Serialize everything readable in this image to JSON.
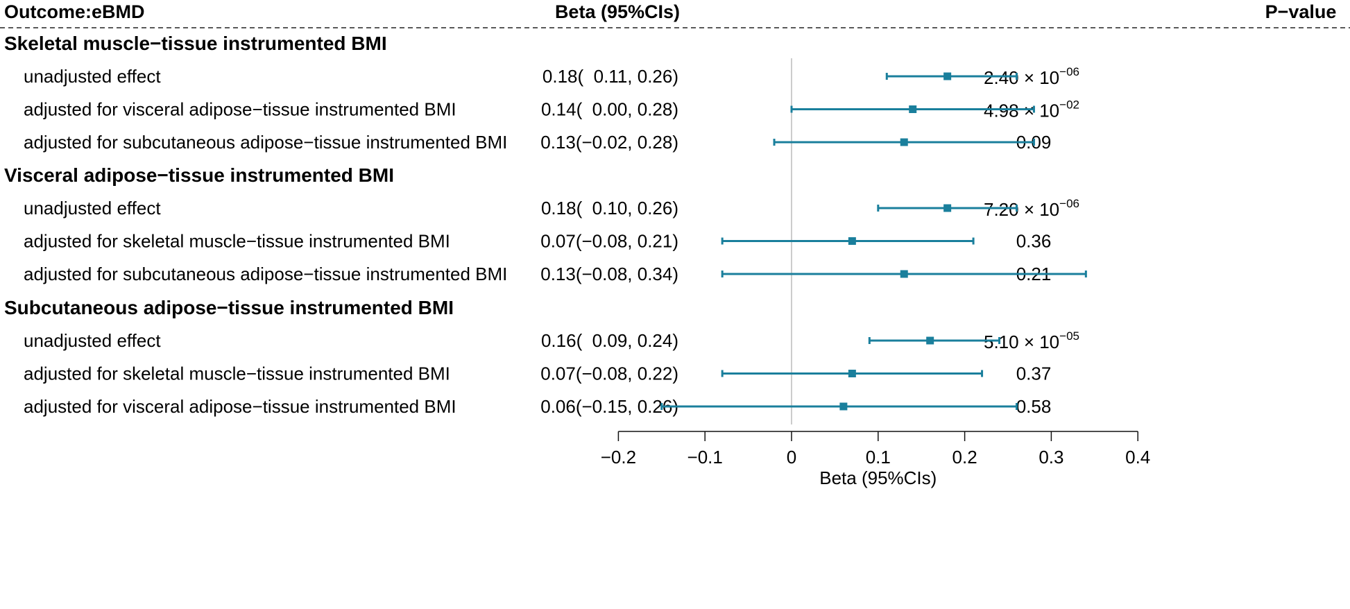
{
  "header": {
    "outcome": "Outcome:eBMD",
    "estimate": "Beta (95%CIs)",
    "pvalue": "P−value"
  },
  "colors": {
    "marker": "#1a7f9c",
    "reference_line": "#cccccc",
    "text": "#111111"
  },
  "chart_data": {
    "type": "forest",
    "xlabel": "Beta (95%CIs)",
    "xlim": [
      -0.2,
      0.4
    ],
    "xticks": [
      -0.2,
      -0.1,
      0,
      0.1,
      0.2,
      0.3,
      0.4
    ],
    "xtick_labels": [
      "−0.2",
      "−0.1",
      "0",
      "0.1",
      "0.2",
      "0.3",
      "0.4"
    ],
    "reference_line": 0,
    "groups": [
      {
        "title": "Skeletal muscle−tissue instrumented BMI",
        "rows": [
          {
            "label": "unadjusted effect",
            "beta": 0.18,
            "lower": 0.11,
            "upper": 0.26,
            "ci_text": "0.18(  0.11, 0.26)",
            "p_mant": "2.40",
            "p_exp": "−06",
            "p_text": ""
          },
          {
            "label": "adjusted for visceral adipose−tissue instrumented BMI",
            "beta": 0.14,
            "lower": 0.0,
            "upper": 0.28,
            "ci_text": "0.14(  0.00, 0.28)",
            "p_mant": "4.98",
            "p_exp": "−02",
            "p_text": ""
          },
          {
            "label": "adjusted for subcutaneous adipose−tissue instrumented BMI",
            "beta": 0.13,
            "lower": -0.02,
            "upper": 0.28,
            "ci_text": "0.13(−0.02, 0.28)",
            "p_mant": "",
            "p_exp": "",
            "p_text": "0.09"
          }
        ]
      },
      {
        "title": "Visceral adipose−tissue instrumented BMI",
        "rows": [
          {
            "label": "unadjusted effect",
            "beta": 0.18,
            "lower": 0.1,
            "upper": 0.26,
            "ci_text": "0.18(  0.10, 0.26)",
            "p_mant": "7.20",
            "p_exp": "−06",
            "p_text": ""
          },
          {
            "label": "adjusted for skeletal muscle−tissue instrumented BMI",
            "beta": 0.07,
            "lower": -0.08,
            "upper": 0.21,
            "ci_text": "0.07(−0.08, 0.21)",
            "p_mant": "",
            "p_exp": "",
            "p_text": "0.36"
          },
          {
            "label": "adjusted for subcutaneous adipose−tissue instrumented BMI",
            "beta": 0.13,
            "lower": -0.08,
            "upper": 0.34,
            "ci_text": "0.13(−0.08, 0.34)",
            "p_mant": "",
            "p_exp": "",
            "p_text": "0.21"
          }
        ]
      },
      {
        "title": "Subcutaneous adipose−tissue instrumented BMI",
        "rows": [
          {
            "label": "unadjusted effect",
            "beta": 0.16,
            "lower": 0.09,
            "upper": 0.24,
            "ci_text": "0.16(  0.09, 0.24)",
            "p_mant": "5.10",
            "p_exp": "−05",
            "p_text": ""
          },
          {
            "label": "adjusted for skeletal muscle−tissue instrumented BMI",
            "beta": 0.07,
            "lower": -0.08,
            "upper": 0.22,
            "ci_text": "0.07(−0.08, 0.22)",
            "p_mant": "",
            "p_exp": "",
            "p_text": "0.37"
          },
          {
            "label": "adjusted for visceral adipose−tissue instrumented BMI",
            "beta": 0.06,
            "lower": -0.15,
            "upper": 0.26,
            "ci_text": "0.06(−0.15, 0.26)",
            "p_mant": "",
            "p_exp": "",
            "p_text": "0.58"
          }
        ]
      }
    ]
  }
}
